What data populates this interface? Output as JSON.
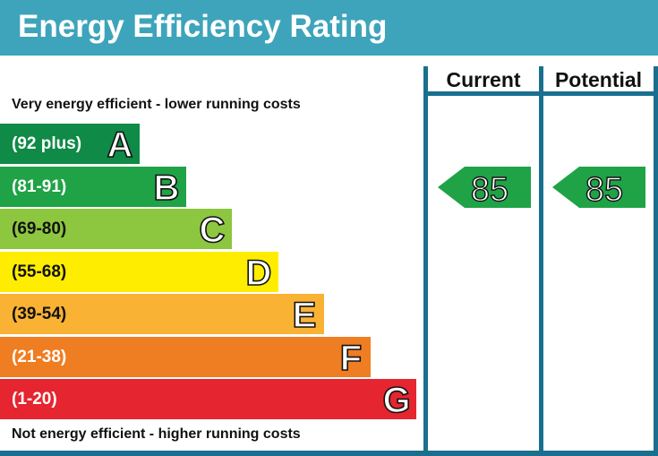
{
  "header": {
    "title": "Energy Efficiency Rating"
  },
  "columns": {
    "current": "Current",
    "potential": "Potential"
  },
  "captions": {
    "top": "Very energy efficient - lower running costs",
    "bottom": "Not energy efficient - higher running costs"
  },
  "chart_data": {
    "type": "bar",
    "title": "Energy Efficiency Rating",
    "categories": [
      "A",
      "B",
      "C",
      "D",
      "E",
      "F",
      "G"
    ],
    "ranges": [
      "(92 plus)",
      "(81-91)",
      "(69-80)",
      "(55-68)",
      "(39-54)",
      "(21-38)",
      "(1-20)"
    ],
    "colors": [
      "#0f8a47",
      "#1fa346",
      "#8dc63f",
      "#ffed00",
      "#f9b233",
      "#ef7d22",
      "#e5252f"
    ],
    "current": {
      "value": 85,
      "band": "B",
      "color": "#1fa346"
    },
    "potential": {
      "value": 85,
      "band": "B",
      "color": "#1fa346"
    }
  }
}
